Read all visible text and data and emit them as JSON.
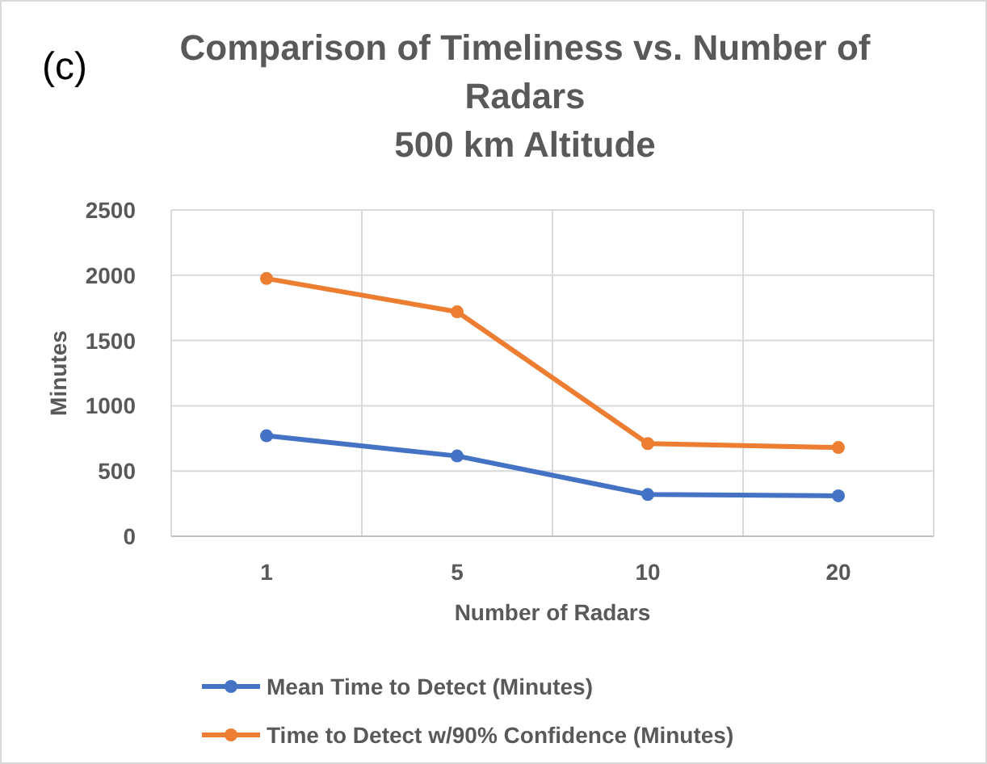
{
  "chart_data": {
    "type": "line",
    "title": "Comparison of Timeliness vs. Number of Radars 500 km Altitude",
    "xlabel": "Number of Radars",
    "ylabel": "Minutes",
    "annotations": [
      "(c)"
    ],
    "categories": [
      "1",
      "5",
      "10",
      "20"
    ],
    "series": [
      {
        "name": "Mean Time to Detect (Minutes)",
        "color": "#4472c4",
        "values": [
          770,
          615,
          320,
          310
        ]
      },
      {
        "name": "Time to Detect w/90% Confidence (Minutes)",
        "color": "#ed7d31",
        "values": [
          1975,
          1720,
          710,
          680
        ]
      }
    ],
    "ylim": [
      0,
      2500
    ],
    "yticks": [
      0,
      500,
      1000,
      1500,
      2000,
      2500
    ],
    "grid": true,
    "legend": "bottom",
    "marker": "circle",
    "line_style": "solid"
  }
}
